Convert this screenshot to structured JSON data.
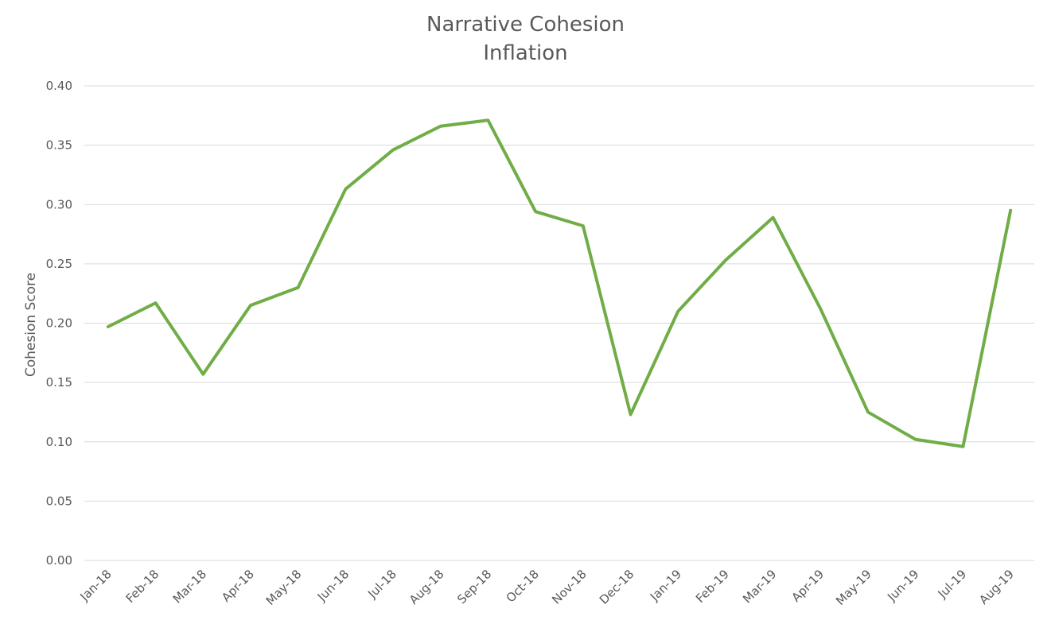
{
  "chart_data": {
    "type": "line",
    "title": "Narrative Cohesion",
    "subtitle": "Inflation",
    "xlabel": "",
    "ylabel": "Cohesion Score",
    "ylim": [
      0,
      0.4
    ],
    "yticks": [
      "0.00",
      "0.05",
      "0.10",
      "0.15",
      "0.20",
      "0.25",
      "0.30",
      "0.35",
      "0.40"
    ],
    "grid": true,
    "legend": "none",
    "categories": [
      "Jan-18",
      "Feb-18",
      "Mar-18",
      "Apr-18",
      "May-18",
      "Jun-18",
      "Jul-18",
      "Aug-18",
      "Sep-18",
      "Oct-18",
      "Nov-18",
      "Dec-18",
      "Jan-19",
      "Feb-19",
      "Mar-19",
      "Apr-19",
      "May-19",
      "Jun-19",
      "Jul-19",
      "Aug-19"
    ],
    "series": [
      {
        "color": "#70AD47",
        "values": [
          0.197,
          0.217,
          0.157,
          0.215,
          0.23,
          0.313,
          0.346,
          0.366,
          0.371,
          0.294,
          0.282,
          0.123,
          0.21,
          0.253,
          0.289,
          0.212,
          0.125,
          0.102,
          0.096,
          0.295
        ]
      }
    ]
  }
}
